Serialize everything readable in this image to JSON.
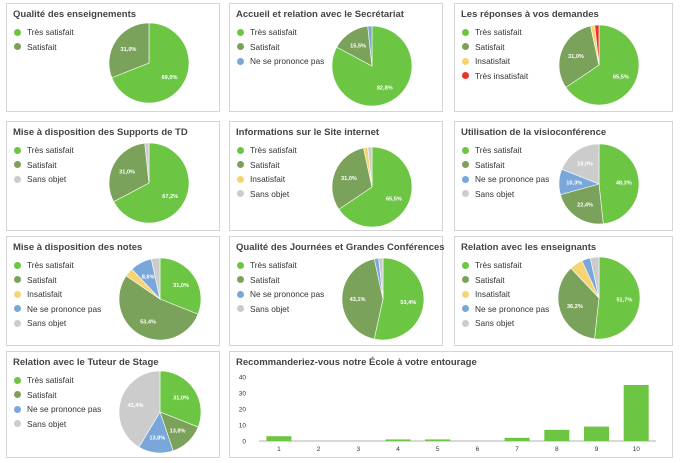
{
  "palette": {
    "tres_satisfait": "#6cc644",
    "satisfait": "#7aa25a",
    "insatisfait": "#f5d471",
    "tres_insatisfait": "#e5352b",
    "ne_se_prononce_pas": "#7aa7d9",
    "sans_objet": "#cccccc",
    "bar": "#6cc644"
  },
  "chart_data": [
    {
      "type": "pie",
      "title": "Qualité des enseignements",
      "legend": [
        "Très satisfait",
        "Satisfait"
      ],
      "slices": [
        {
          "label": "Très satisfait",
          "value": 69.0,
          "text": "69,0%",
          "color": "#6cc644"
        },
        {
          "label": "Satisfait",
          "value": 31.0,
          "text": "31,0%",
          "color": "#7aa25a"
        }
      ]
    },
    {
      "type": "pie",
      "title": "Accueil et relation avec le Secrétariat",
      "legend": [
        "Très satisfait",
        "Satisfait",
        "Ne se prononce pas"
      ],
      "slices": [
        {
          "label": "Très satisfait",
          "value": 82.8,
          "text": "82,8%",
          "color": "#6cc644"
        },
        {
          "label": "Satisfait",
          "value": 15.5,
          "text": "15,5%",
          "color": "#7aa25a"
        },
        {
          "label": "Ne se prononce pas",
          "value": 1.7,
          "text": "",
          "color": "#7aa7d9"
        }
      ]
    },
    {
      "type": "pie",
      "title": "Les réponses à vos demandes",
      "legend": [
        "Très satisfait",
        "Satisfait",
        "Insatisfait",
        "Très insatisfait"
      ],
      "slices": [
        {
          "label": "Très satisfait",
          "value": 65.5,
          "text": "65,5%",
          "color": "#6cc644"
        },
        {
          "label": "Satisfait",
          "value": 31.0,
          "text": "31,0%",
          "color": "#7aa25a"
        },
        {
          "label": "Insatisfait",
          "value": 1.7,
          "text": "",
          "color": "#f5d471"
        },
        {
          "label": "Très insatisfait",
          "value": 1.7,
          "text": "",
          "color": "#e5352b"
        }
      ]
    },
    {
      "type": "pie",
      "title": "Mise à disposition des Supports de TD",
      "legend": [
        "Très satisfait",
        "Satisfait",
        "Sans objet"
      ],
      "slices": [
        {
          "label": "Très satisfait",
          "value": 67.2,
          "text": "67,2%",
          "color": "#6cc644"
        },
        {
          "label": "Satisfait",
          "value": 31.0,
          "text": "31,0%",
          "color": "#7aa25a"
        },
        {
          "label": "Sans objet",
          "value": 1.7,
          "text": "",
          "color": "#cccccc"
        }
      ]
    },
    {
      "type": "pie",
      "title": "Informations sur le Site internet",
      "legend": [
        "Très satisfait",
        "Satisfait",
        "Insatisfait",
        "Sans objet"
      ],
      "slices": [
        {
          "label": "Très satisfait",
          "value": 65.5,
          "text": "65,5%",
          "color": "#6cc644"
        },
        {
          "label": "Satisfait",
          "value": 31.0,
          "text": "31,0%",
          "color": "#7aa25a"
        },
        {
          "label": "Insatisfait",
          "value": 1.7,
          "text": "",
          "color": "#f5d471"
        },
        {
          "label": "Sans objet",
          "value": 1.7,
          "text": "",
          "color": "#cccccc"
        }
      ]
    },
    {
      "type": "pie",
      "title": "Utilisation de la visioconférence",
      "legend": [
        "Très satisfait",
        "Satisfait",
        "Ne se prononce pas",
        "Sans objet"
      ],
      "slices": [
        {
          "label": "Très satisfait",
          "value": 48.3,
          "text": "48,3%",
          "color": "#6cc644"
        },
        {
          "label": "Satisfait",
          "value": 22.4,
          "text": "22,4%",
          "color": "#7aa25a"
        },
        {
          "label": "Ne se prononce pas",
          "value": 10.3,
          "text": "10,3%",
          "color": "#7aa7d9"
        },
        {
          "label": "Sans objet",
          "value": 19.0,
          "text": "19,0%",
          "color": "#cccccc"
        }
      ]
    },
    {
      "type": "pie",
      "title": "Mise à disposition des notes",
      "legend": [
        "Très satisfait",
        "Satisfait",
        "Insatisfait",
        "Ne se prononce pas",
        "Sans objet"
      ],
      "slices": [
        {
          "label": "Très satisfait",
          "value": 31.0,
          "text": "31,0%",
          "color": "#6cc644"
        },
        {
          "label": "Satisfait",
          "value": 53.4,
          "text": "53,4%",
          "color": "#7aa25a"
        },
        {
          "label": "Insatisfait",
          "value": 3.4,
          "text": "",
          "color": "#f5d471"
        },
        {
          "label": "Ne se prononce pas",
          "value": 8.6,
          "text": "8,6%",
          "color": "#7aa7d9"
        },
        {
          "label": "Sans objet",
          "value": 3.4,
          "text": "",
          "color": "#cccccc"
        }
      ]
    },
    {
      "type": "pie",
      "title": "Qualité des Journées et Grandes Conférences",
      "legend": [
        "Très satisfait",
        "Satisfait",
        "Ne se prononce pas",
        "Sans objet"
      ],
      "slices": [
        {
          "label": "Très satisfait",
          "value": 53.4,
          "text": "53,4%",
          "color": "#6cc644"
        },
        {
          "label": "Satisfait",
          "value": 43.1,
          "text": "43,1%",
          "color": "#7aa25a"
        },
        {
          "label": "Ne se prononce pas",
          "value": 1.7,
          "text": "",
          "color": "#7aa7d9"
        },
        {
          "label": "Sans objet",
          "value": 1.7,
          "text": "",
          "color": "#cccccc"
        }
      ]
    },
    {
      "type": "pie",
      "title": "Relation avec les enseignants",
      "legend": [
        "Très satisfait",
        "Satisfait",
        "Insatisfait",
        "Ne se prononce pas",
        "Sans objet"
      ],
      "slices": [
        {
          "label": "Très satisfait",
          "value": 51.7,
          "text": "51,7%",
          "color": "#6cc644"
        },
        {
          "label": "Satisfait",
          "value": 36.2,
          "text": "36,2%",
          "color": "#7aa25a"
        },
        {
          "label": "Insatisfait",
          "value": 5.2,
          "text": "",
          "color": "#f5d471"
        },
        {
          "label": "Ne se prononce pas",
          "value": 3.4,
          "text": "",
          "color": "#7aa7d9"
        },
        {
          "label": "Sans objet",
          "value": 3.4,
          "text": "",
          "color": "#cccccc"
        }
      ]
    },
    {
      "type": "pie",
      "title": "Relation avec le Tuteur de Stage",
      "legend": [
        "Très satisfait",
        "Satisfait",
        "Ne se prononce pas",
        "Sans objet"
      ],
      "slices": [
        {
          "label": "Très satisfait",
          "value": 31.0,
          "text": "31,0%",
          "color": "#6cc644"
        },
        {
          "label": "Satisfait",
          "value": 13.8,
          "text": "13,8%",
          "color": "#7aa25a"
        },
        {
          "label": "Ne se prononce pas",
          "value": 13.8,
          "text": "13,8%",
          "color": "#7aa7d9"
        },
        {
          "label": "Sans objet",
          "value": 41.4,
          "text": "41,4%",
          "color": "#cccccc"
        }
      ]
    },
    {
      "type": "bar",
      "title": "Recommanderiez-vous notre École à votre entourage",
      "categories": [
        "1",
        "2",
        "3",
        "4",
        "5",
        "6",
        "7",
        "8",
        "9",
        "10"
      ],
      "values": [
        3,
        0,
        0,
        1,
        1,
        0,
        2,
        7,
        9,
        35
      ],
      "yticks": [
        0,
        10,
        20,
        30,
        40
      ],
      "ylim": [
        0,
        40
      ],
      "grid": false,
      "color": "#6cc644"
    }
  ]
}
